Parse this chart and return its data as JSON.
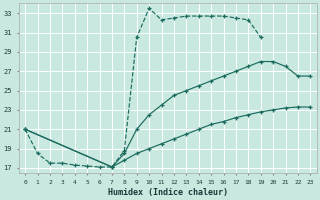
{
  "xlabel": "Humidex (Indice chaleur)",
  "bg_color": "#c8e8e0",
  "grid_color": "#ffffff",
  "line_color": "#1a6b5e",
  "xlim": [
    -0.5,
    23.5
  ],
  "ylim": [
    16.5,
    34.0
  ],
  "xticks": [
    0,
    1,
    2,
    3,
    4,
    5,
    6,
    7,
    8,
    9,
    10,
    11,
    12,
    13,
    14,
    15,
    16,
    17,
    18,
    19,
    20,
    21,
    22,
    23
  ],
  "yticks": [
    17,
    19,
    21,
    23,
    25,
    27,
    29,
    31,
    33
  ],
  "series": [
    {
      "x": [
        0,
        1,
        2,
        3,
        4,
        5,
        6,
        7,
        8,
        9,
        10,
        11,
        12,
        13,
        14,
        15,
        16,
        17,
        18,
        19
      ],
      "y": [
        21.0,
        18.5,
        17.5,
        17.5,
        17.3,
        17.2,
        17.1,
        17.1,
        18.8,
        30.5,
        33.5,
        32.3,
        32.5,
        32.7,
        32.7,
        32.7,
        32.7,
        32.5,
        32.3,
        30.5
      ],
      "linestyle": "--",
      "marker": "+"
    },
    {
      "x": [
        0,
        7,
        8,
        9,
        10,
        11,
        12,
        13,
        14,
        15,
        16,
        17,
        18,
        19,
        20,
        21,
        22,
        23
      ],
      "y": [
        21.0,
        17.1,
        18.5,
        21.0,
        22.5,
        23.5,
        24.5,
        25.0,
        25.5,
        26.0,
        26.5,
        27.0,
        27.5,
        28.0,
        28.0,
        27.5,
        26.5,
        26.5
      ],
      "linestyle": "-",
      "marker": "+"
    },
    {
      "x": [
        0,
        7,
        8,
        9,
        10,
        11,
        12,
        13,
        14,
        15,
        16,
        17,
        18,
        19,
        20,
        21,
        22,
        23
      ],
      "y": [
        21.0,
        17.1,
        17.8,
        18.5,
        19.0,
        19.5,
        20.0,
        20.5,
        21.0,
        21.5,
        21.8,
        22.2,
        22.5,
        22.8,
        23.0,
        23.2,
        23.3,
        23.3
      ],
      "linestyle": "-",
      "marker": "+"
    }
  ]
}
